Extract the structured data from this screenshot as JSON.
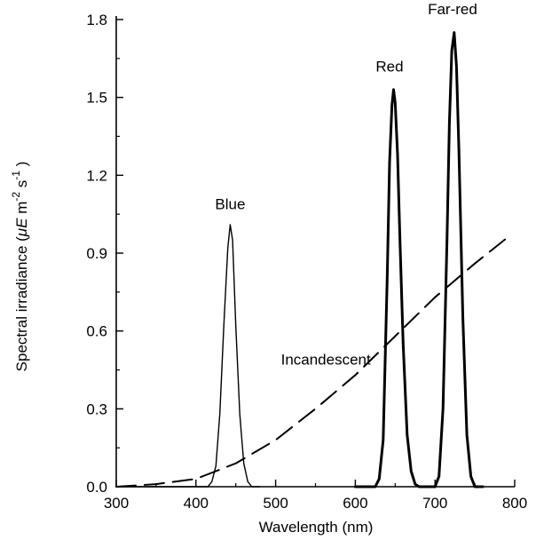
{
  "chart_data": {
    "type": "line",
    "xlabel": "Wavelength (nm)",
    "ylabel": {
      "prefix": "Spectral irradiance (",
      "mu": "μ",
      "e": "E",
      "m": " m",
      "m_exp": "-2",
      "s": " s",
      "s_exp": "-1",
      "suffix": " )"
    },
    "xlim": [
      300,
      800
    ],
    "ylim": [
      0,
      1.8
    ],
    "x_ticks": [
      300,
      400,
      500,
      600,
      700,
      800
    ],
    "x_tick_labels": [
      "300",
      "400",
      "500",
      "600",
      "700",
      "800"
    ],
    "y_ticks": [
      0.0,
      0.3,
      0.6,
      0.9,
      1.2,
      1.5,
      1.8
    ],
    "y_tick_labels": [
      "0.0",
      "0.3",
      "0.6",
      "0.9",
      "1.2",
      "1.5",
      "1.8"
    ],
    "grid": false,
    "series": [
      {
        "name": "Blue",
        "style": "solid-thin",
        "color": "#000000",
        "x": [
          300,
          415,
          420,
          425,
          430,
          435,
          440,
          443,
          446,
          450,
          455,
          460,
          465,
          470,
          480
        ],
        "y": [
          0,
          0,
          0.02,
          0.08,
          0.28,
          0.62,
          0.92,
          1.01,
          0.95,
          0.62,
          0.28,
          0.09,
          0.02,
          0,
          0
        ]
      },
      {
        "name": "Red",
        "style": "solid-thick",
        "color": "#000000",
        "x": [
          600,
          625,
          630,
          635,
          640,
          643,
          646,
          648,
          650,
          653,
          656,
          660,
          665,
          670,
          675,
          680,
          700
        ],
        "y": [
          0,
          0,
          0.03,
          0.18,
          0.8,
          1.25,
          1.47,
          1.53,
          1.48,
          1.28,
          0.95,
          0.55,
          0.2,
          0.06,
          0.01,
          0,
          0
        ]
      },
      {
        "name": "Far-red",
        "style": "solid-thick",
        "color": "#000000",
        "x": [
          690,
          700,
          705,
          710,
          715,
          718,
          721,
          724,
          727,
          730,
          735,
          740,
          745,
          750,
          760
        ],
        "y": [
          0,
          0,
          0.04,
          0.3,
          0.95,
          1.4,
          1.68,
          1.75,
          1.62,
          1.3,
          0.65,
          0.2,
          0.04,
          0,
          0
        ]
      },
      {
        "name": "Incandescent",
        "style": "dashed",
        "color": "#000000",
        "x": [
          300,
          350,
          400,
          450,
          500,
          550,
          600,
          650,
          700,
          750,
          795
        ],
        "y": [
          0,
          0.01,
          0.03,
          0.09,
          0.18,
          0.3,
          0.43,
          0.58,
          0.73,
          0.86,
          0.97
        ]
      }
    ],
    "annotations": [
      {
        "text": "Blue",
        "x": 443,
        "y": 1.07
      },
      {
        "text": "Red",
        "x": 643,
        "y": 1.6
      },
      {
        "text": "Far-red",
        "x": 722,
        "y": 1.82
      },
      {
        "text": "Incandescent",
        "x": 563,
        "y": 0.47
      }
    ]
  }
}
